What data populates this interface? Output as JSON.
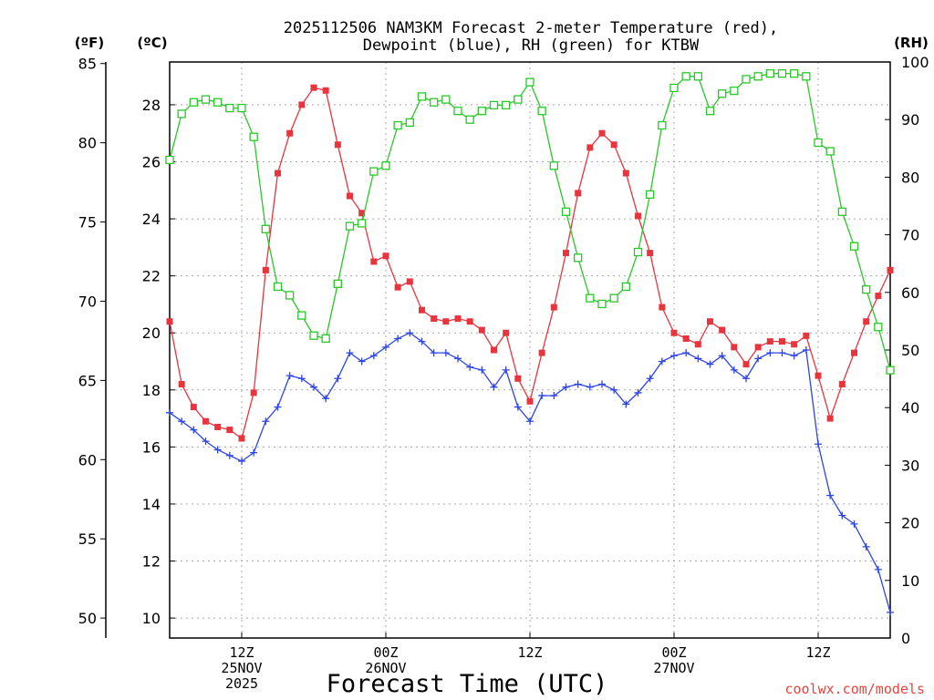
{
  "chart_data": {
    "type": "line",
    "title_lines": [
      "2025112506 NAM3KM Forecast 2-meter Temperature (red),",
      "Dewpoint (blue), RH (green) for KTBW"
    ],
    "xlabel": "Forecast Time (UTC)",
    "credit": "coolwx.com/models",
    "units": {
      "left_outer": "(ºF)",
      "left_inner": "(ºC)",
      "right": "(RH)"
    },
    "x_range_hours": [
      0,
      60
    ],
    "x_ticks": [
      {
        "hour": 6,
        "lines": [
          "12Z",
          "25NOV",
          "2025"
        ]
      },
      {
        "hour": 18,
        "lines": [
          "00Z",
          "26NOV"
        ]
      },
      {
        "hour": 30,
        "lines": [
          "12Z"
        ]
      },
      {
        "hour": 42,
        "lines": [
          "00Z",
          "27NOV"
        ]
      },
      {
        "hour": 54,
        "lines": [
          "12Z"
        ]
      }
    ],
    "y_celsius": {
      "range": [
        9.3,
        29.5
      ],
      "ticks": [
        10,
        12,
        14,
        16,
        18,
        20,
        22,
        24,
        26,
        28
      ]
    },
    "y_fahrenheit": {
      "ticks": [
        50,
        55,
        60,
        65,
        70,
        75,
        80,
        85
      ]
    },
    "y_rh": {
      "range": [
        0,
        100
      ],
      "ticks": [
        0,
        10,
        20,
        30,
        40,
        50,
        60,
        70,
        80,
        90,
        100
      ]
    },
    "series": [
      {
        "name": "Temperature",
        "color": "#e8343c",
        "axis": "celsius",
        "marker": "filled-square",
        "values": [
          20.4,
          18.2,
          17.4,
          16.9,
          16.7,
          16.6,
          16.3,
          17.9,
          22.2,
          25.6,
          27.0,
          28.0,
          28.6,
          28.5,
          26.6,
          24.8,
          24.2,
          22.5,
          22.7,
          21.6,
          21.8,
          20.8,
          20.5,
          20.4,
          20.5,
          20.4,
          20.1,
          19.4,
          20.0,
          18.4,
          17.6,
          19.3,
          20.9,
          22.8,
          24.9,
          26.5,
          27.0,
          26.6,
          25.6,
          24.1,
          22.8,
          20.9,
          20.0,
          19.8,
          19.6,
          20.4,
          20.1,
          19.5,
          18.9,
          19.5,
          19.7,
          19.7,
          19.6,
          19.9,
          18.5,
          17.0,
          18.2,
          19.3,
          20.4,
          21.3,
          22.2
        ]
      },
      {
        "name": "Dewpoint",
        "color": "#2e44e8",
        "axis": "celsius",
        "marker": "plus",
        "values": [
          17.2,
          16.9,
          16.6,
          16.2,
          15.9,
          15.7,
          15.5,
          15.8,
          16.9,
          17.4,
          18.5,
          18.4,
          18.1,
          17.7,
          18.4,
          19.3,
          19.0,
          19.2,
          19.5,
          19.8,
          20.0,
          19.7,
          19.3,
          19.3,
          19.1,
          18.8,
          18.7,
          18.1,
          18.7,
          17.4,
          16.9,
          17.8,
          17.8,
          18.1,
          18.2,
          18.1,
          18.2,
          18.0,
          17.5,
          17.9,
          18.4,
          19.0,
          19.2,
          19.3,
          19.1,
          18.9,
          19.2,
          18.7,
          18.4,
          19.1,
          19.3,
          19.3,
          19.2,
          19.4,
          16.1,
          14.3,
          13.6,
          13.3,
          12.5,
          11.7,
          10.2
        ]
      },
      {
        "name": "RH",
        "color": "#28c828",
        "axis": "rh",
        "marker": "open-square",
        "values": [
          83,
          91,
          93,
          93.5,
          93,
          92,
          92,
          87,
          71,
          61,
          59.5,
          56,
          52.5,
          52,
          61.5,
          71.5,
          72,
          81,
          82,
          89,
          89.5,
          94,
          93,
          93.5,
          91.5,
          90,
          91.5,
          92.5,
          92.5,
          93.5,
          96.5,
          91.5,
          82,
          74,
          66,
          59,
          58,
          59,
          61,
          67,
          77,
          89,
          95.5,
          97.5,
          97.5,
          91.5,
          94.5,
          95,
          97,
          97.5,
          98,
          98,
          98,
          97.5,
          86,
          84.5,
          74,
          68,
          60.5,
          54,
          46.5
        ]
      }
    ]
  }
}
